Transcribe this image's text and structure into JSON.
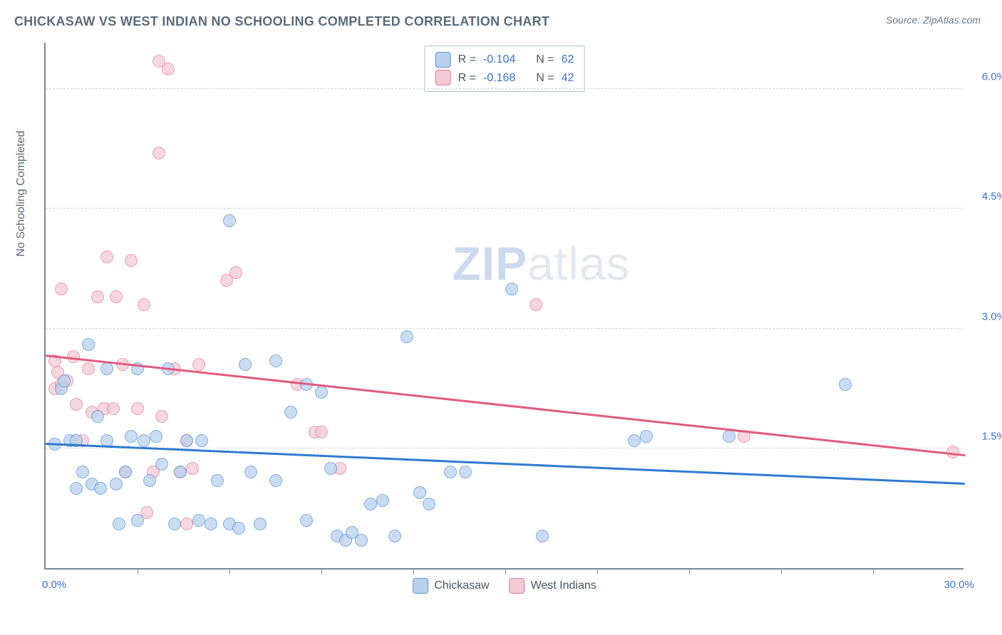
{
  "header": {
    "title": "CHICKASAW VS WEST INDIAN NO SCHOOLING COMPLETED CORRELATION CHART",
    "source_prefix": "Source: ",
    "source_name": "ZipAtlas.com"
  },
  "axes": {
    "y_label": "No Schooling Completed",
    "x_min_label": "0.0%",
    "x_max_label": "30.0%",
    "x_domain": [
      0,
      30
    ],
    "y_domain": [
      0,
      6.6
    ],
    "y_ticks": [
      {
        "v": 1.5,
        "label": "1.5%"
      },
      {
        "v": 3.0,
        "label": "3.0%"
      },
      {
        "v": 4.5,
        "label": "4.5%"
      },
      {
        "v": 6.0,
        "label": "6.0%"
      }
    ],
    "x_ticks": [
      3,
      6,
      9,
      12,
      15,
      18,
      21,
      24,
      27
    ],
    "grid_color": "#d0d6dc",
    "axis_color": "#7a8a98",
    "label_color_primary": "#5a6b7a",
    "label_color_value": "#3a6fd8"
  },
  "series": {
    "chickasaw": {
      "label": "Chickasaw",
      "fill": "#b9d1ed",
      "stroke": "#5a95d8",
      "trend_color": "#2f7ad1",
      "marker_radius": 9,
      "marker_opacity": 0.75,
      "R": "-0.104",
      "N": "62",
      "trend": {
        "x1": 0,
        "y1": 1.55,
        "x2": 30,
        "y2": 1.05
      },
      "points": [
        [
          0.3,
          1.55
        ],
        [
          0.5,
          2.25
        ],
        [
          0.6,
          2.35
        ],
        [
          0.8,
          1.6
        ],
        [
          1.0,
          1.0
        ],
        [
          1.0,
          1.6
        ],
        [
          1.2,
          1.2
        ],
        [
          1.4,
          2.8
        ],
        [
          1.5,
          1.05
        ],
        [
          1.7,
          1.9
        ],
        [
          1.8,
          1.0
        ],
        [
          2.0,
          1.6
        ],
        [
          2.0,
          2.5
        ],
        [
          2.3,
          1.05
        ],
        [
          2.4,
          0.55
        ],
        [
          2.6,
          1.2
        ],
        [
          2.8,
          1.65
        ],
        [
          3.0,
          2.5
        ],
        [
          3.0,
          0.6
        ],
        [
          3.2,
          1.6
        ],
        [
          3.4,
          1.1
        ],
        [
          3.6,
          1.65
        ],
        [
          3.8,
          1.3
        ],
        [
          4.0,
          2.5
        ],
        [
          4.2,
          0.55
        ],
        [
          4.4,
          1.2
        ],
        [
          4.6,
          1.6
        ],
        [
          5.0,
          0.6
        ],
        [
          5.1,
          1.6
        ],
        [
          5.4,
          0.55
        ],
        [
          5.6,
          1.1
        ],
        [
          6.0,
          4.35
        ],
        [
          6.0,
          0.55
        ],
        [
          6.3,
          0.5
        ],
        [
          6.5,
          2.55
        ],
        [
          6.7,
          1.2
        ],
        [
          7.0,
          0.55
        ],
        [
          7.5,
          2.6
        ],
        [
          7.5,
          1.1
        ],
        [
          8.0,
          1.95
        ],
        [
          8.5,
          2.3
        ],
        [
          8.5,
          0.6
        ],
        [
          9.0,
          2.2
        ],
        [
          9.3,
          1.25
        ],
        [
          9.5,
          0.4
        ],
        [
          9.8,
          0.35
        ],
        [
          10.0,
          0.45
        ],
        [
          10.3,
          0.35
        ],
        [
          10.6,
          0.8
        ],
        [
          11.0,
          0.85
        ],
        [
          11.4,
          0.4
        ],
        [
          11.8,
          2.9
        ],
        [
          12.2,
          0.95
        ],
        [
          12.5,
          0.8
        ],
        [
          13.2,
          1.2
        ],
        [
          13.7,
          1.2
        ],
        [
          15.2,
          3.5
        ],
        [
          16.2,
          0.4
        ],
        [
          19.2,
          1.6
        ],
        [
          19.6,
          1.65
        ],
        [
          22.3,
          1.65
        ],
        [
          26.1,
          2.3
        ]
      ]
    },
    "west_indians": {
      "label": "West Indians",
      "fill": "#f3c9d4",
      "stroke": "#e37a96",
      "trend_color": "#e15a7e",
      "marker_radius": 9,
      "marker_opacity": 0.72,
      "R": "-0.168",
      "N": "42",
      "trend": {
        "x1": 0,
        "y1": 2.65,
        "x2": 30,
        "y2": 1.4
      },
      "points": [
        [
          0.3,
          2.6
        ],
        [
          0.3,
          2.25
        ],
        [
          0.4,
          2.45
        ],
        [
          0.5,
          3.5
        ],
        [
          0.5,
          2.3
        ],
        [
          0.7,
          2.35
        ],
        [
          0.9,
          2.65
        ],
        [
          1.0,
          2.05
        ],
        [
          1.2,
          1.6
        ],
        [
          1.4,
          2.5
        ],
        [
          1.5,
          1.95
        ],
        [
          1.7,
          3.4
        ],
        [
          1.9,
          2.0
        ],
        [
          2.0,
          3.9
        ],
        [
          2.2,
          2.0
        ],
        [
          2.3,
          3.4
        ],
        [
          2.5,
          2.55
        ],
        [
          2.6,
          1.2
        ],
        [
          2.8,
          3.85
        ],
        [
          3.0,
          2.0
        ],
        [
          3.2,
          3.3
        ],
        [
          3.3,
          0.7
        ],
        [
          3.5,
          1.2
        ],
        [
          3.7,
          5.2
        ],
        [
          3.7,
          6.35
        ],
        [
          3.8,
          1.9
        ],
        [
          4.0,
          6.25
        ],
        [
          4.2,
          2.5
        ],
        [
          4.4,
          1.2
        ],
        [
          4.6,
          1.6
        ],
        [
          4.6,
          0.55
        ],
        [
          4.8,
          1.25
        ],
        [
          5.0,
          2.55
        ],
        [
          5.9,
          3.6
        ],
        [
          6.2,
          3.7
        ],
        [
          8.2,
          2.3
        ],
        [
          8.8,
          1.7
        ],
        [
          9.0,
          1.7
        ],
        [
          9.6,
          1.25
        ],
        [
          16.0,
          3.3
        ],
        [
          22.8,
          1.65
        ],
        [
          29.6,
          1.45
        ]
      ]
    }
  },
  "stat_box": {
    "R_label": "R =",
    "N_label": "N ="
  },
  "legend": {
    "items": [
      "chickasaw",
      "west_indians"
    ]
  },
  "watermark": {
    "zip": "ZIP",
    "atlas": "atlas"
  },
  "colors": {
    "background": "#ffffff"
  }
}
